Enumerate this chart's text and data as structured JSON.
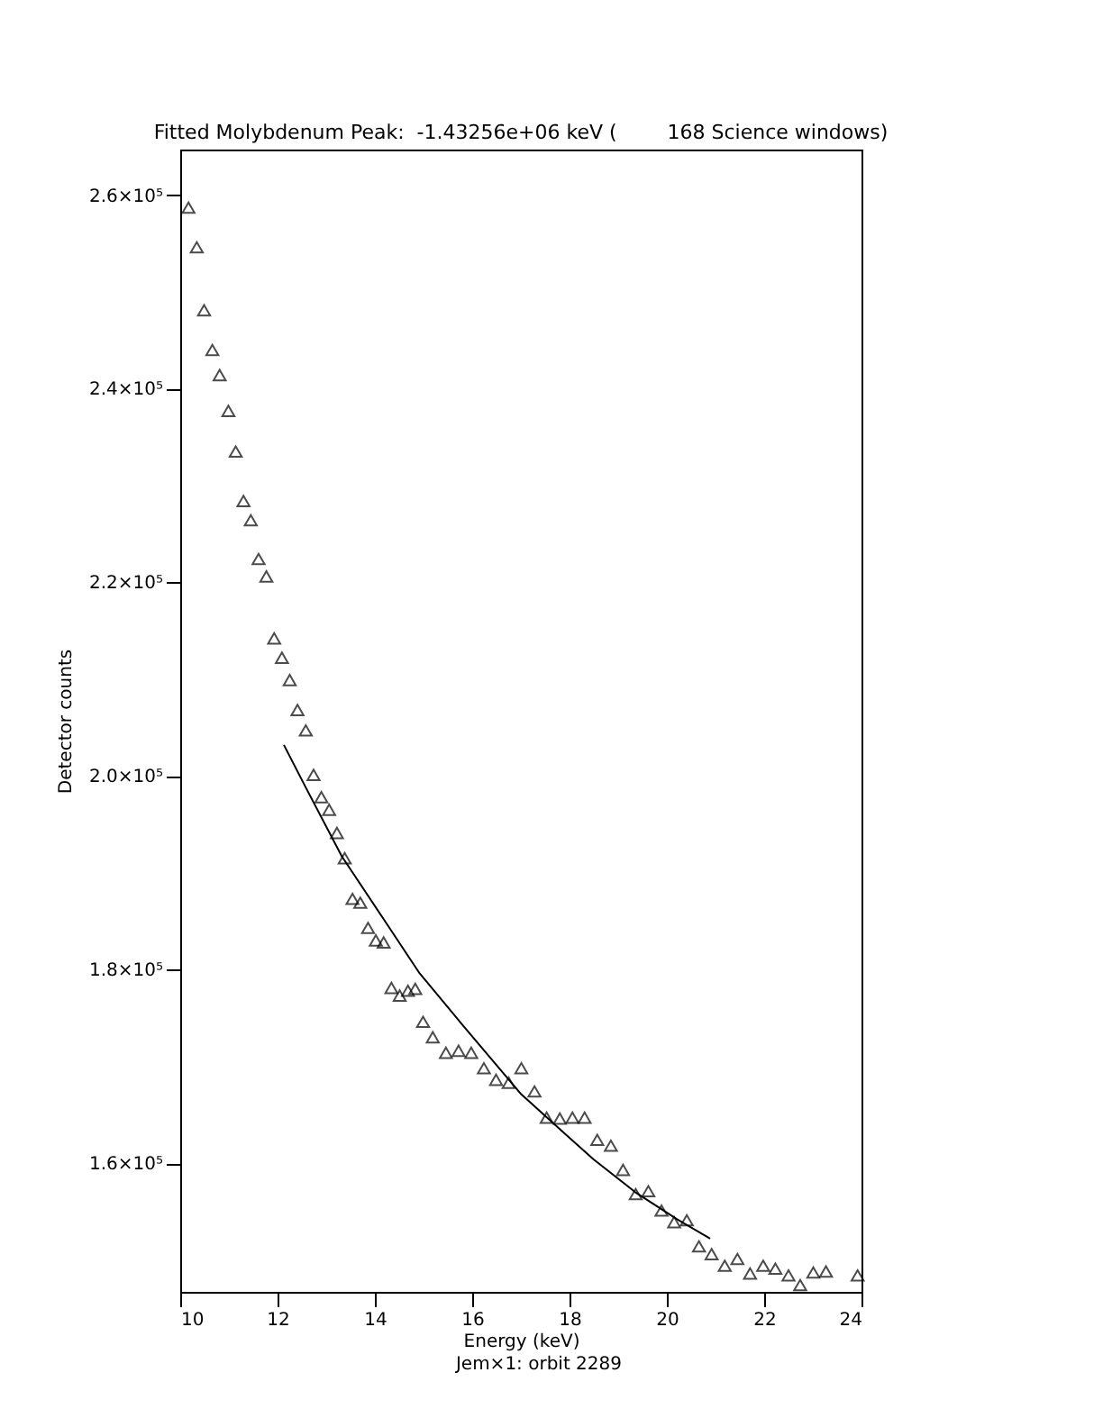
{
  "chart_data": {
    "type": "scatter",
    "title": "Fitted Molybdenum Peak:  -1.43256e+06 keV (        168 Science windows)",
    "xlabel": "Energy (keV)",
    "ylabel": "Detector counts",
    "annotations": [
      "Jem×1: orbit 2289"
    ],
    "xlim": [
      10,
      24
    ],
    "xticks": [
      10,
      12,
      14,
      16,
      18,
      20,
      22,
      24
    ],
    "ylim": [
      146700,
      264700
    ],
    "yticks": [
      {
        "value": 160000,
        "label": "1.6×10⁵"
      },
      {
        "value": 180000,
        "label": "1.8×10⁵"
      },
      {
        "value": 200000,
        "label": "2.0×10⁵"
      },
      {
        "value": 220000,
        "label": "2.2×10⁵"
      },
      {
        "value": 240000,
        "label": "2.4×10⁵"
      },
      {
        "value": 260000,
        "label": "2.6×10⁵"
      }
    ],
    "grid": false,
    "series": [
      {
        "type": "scatter",
        "marker": "triangle",
        "color": "#000000",
        "x": [
          10.17,
          10.34,
          10.49,
          10.66,
          10.81,
          10.99,
          11.14,
          11.3,
          11.45,
          11.61,
          11.77,
          11.93,
          12.09,
          12.25,
          12.41,
          12.58,
          12.74,
          12.9,
          13.06,
          13.22,
          13.38,
          13.54,
          13.7,
          13.86,
          14.02,
          14.18,
          14.34,
          14.51,
          14.68,
          14.83,
          14.99,
          15.19,
          15.46,
          15.72,
          15.98,
          16.24,
          16.49,
          16.75,
          17.01,
          17.28,
          17.53,
          17.8,
          18.06,
          18.31,
          18.57,
          18.85,
          19.1,
          19.36,
          19.62,
          19.89,
          20.15,
          20.41,
          20.66,
          20.92,
          21.19,
          21.45,
          21.71,
          21.98,
          22.23,
          22.5,
          22.74,
          23.01,
          23.27,
          23.92
        ],
        "values": [
          258700,
          254600,
          248100,
          244000,
          241400,
          237700,
          233500,
          228400,
          226400,
          222400,
          220600,
          214200,
          212200,
          209900,
          206800,
          204700,
          200100,
          197800,
          196500,
          194100,
          191500,
          187300,
          186900,
          184300,
          183000,
          182800,
          178100,
          177300,
          177800,
          178000,
          174600,
          173000,
          171400,
          171600,
          171400,
          169800,
          168600,
          168300,
          169800,
          167400,
          164700,
          164600,
          164700,
          164700,
          162400,
          161800,
          159300,
          156800,
          157100,
          155100,
          153900,
          154100,
          151400,
          150600,
          149400,
          150100,
          148600,
          149400,
          149100,
          148400,
          147400,
          148700,
          148800,
          148400
        ]
      },
      {
        "type": "line",
        "color": "#000000",
        "x": [
          12.13,
          12.58,
          13.32,
          14.18,
          14.92,
          15.78,
          17.01,
          17.87,
          18.49,
          19.35,
          20.21,
          20.89
        ],
        "values": [
          203200,
          198800,
          191700,
          185200,
          179600,
          174400,
          167100,
          163200,
          160400,
          157000,
          154200,
          152200
        ]
      }
    ]
  }
}
